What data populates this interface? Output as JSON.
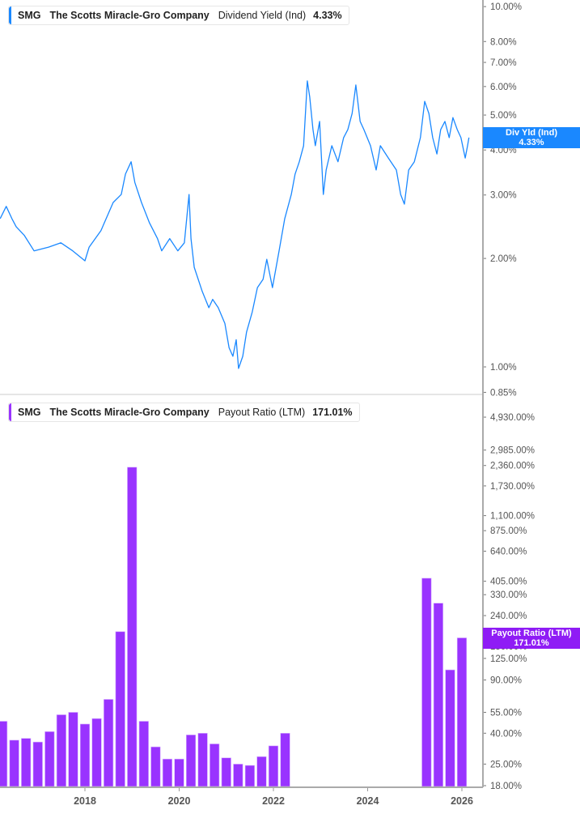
{
  "colors": {
    "line": "#1a88ff",
    "bar": "#9933ff",
    "tag_top": "#1a88ff",
    "tag_bottom": "#8f1cf5"
  },
  "top_legend": {
    "ticker": "SMG",
    "company": "The Scotts Miracle-Gro Company",
    "metric": "Dividend Yield (Ind)",
    "value": "4.33%"
  },
  "bottom_legend": {
    "ticker": "SMG",
    "company": "The Scotts Miracle-Gro Company",
    "metric": "Payout Ratio (LTM)",
    "value": "171.01%"
  },
  "top_tag": {
    "label": "Div Yld (Ind)",
    "value": "4.33%"
  },
  "bottom_tag": {
    "label": "Payout Ratio (LTM)",
    "value": "171.01%"
  },
  "chart_data": [
    {
      "type": "line",
      "scale": "log",
      "series": [
        {
          "name": "Dividend Yield (Ind)",
          "x": [
            2016.2,
            2016.33,
            2016.45,
            2016.54,
            2016.71,
            2016.92,
            2017.23,
            2017.49,
            2017.74,
            2018.0,
            2018.09,
            2018.34,
            2018.6,
            2018.77,
            2018.86,
            2018.98,
            2019.06,
            2019.2,
            2019.37,
            2019.54,
            2019.63,
            2019.8,
            2019.97,
            2020.11,
            2020.21,
            2020.25,
            2020.32,
            2020.49,
            2020.63,
            2020.71,
            2020.83,
            2020.97,
            2021.06,
            2021.14,
            2021.21,
            2021.26,
            2021.35,
            2021.43,
            2021.55,
            2021.66,
            2021.78,
            2021.86,
            2021.98,
            2022.12,
            2022.24,
            2022.38,
            2022.46,
            2022.55,
            2022.64,
            2022.72,
            2022.77,
            2022.84,
            2022.89,
            2022.98,
            2023.06,
            2023.12,
            2023.24,
            2023.37,
            2023.49,
            2023.58,
            2023.67,
            2023.75,
            2023.84,
            2023.92,
            2024.06,
            2024.18,
            2024.27,
            2024.44,
            2024.61,
            2024.7,
            2024.78,
            2024.87,
            2024.99,
            2025.12,
            2025.21,
            2025.3,
            2025.38,
            2025.47,
            2025.55,
            2025.64,
            2025.73,
            2025.81,
            2025.9,
            2025.98,
            2026.07,
            2026.12,
            2026.15
          ],
          "y": [
            2.58,
            2.79,
            2.58,
            2.45,
            2.32,
            2.1,
            2.15,
            2.21,
            2.1,
            1.97,
            2.15,
            2.39,
            2.86,
            3.01,
            3.43,
            3.71,
            3.25,
            2.86,
            2.51,
            2.27,
            2.1,
            2.27,
            2.1,
            2.21,
            3.01,
            2.27,
            1.89,
            1.62,
            1.46,
            1.54,
            1.46,
            1.32,
            1.13,
            1.07,
            1.19,
            0.99,
            1.07,
            1.25,
            1.42,
            1.66,
            1.75,
            1.99,
            1.66,
            2.1,
            2.58,
            3.01,
            3.43,
            3.71,
            4.11,
            6.22,
            5.61,
            4.56,
            4.11,
            4.8,
            3.01,
            3.52,
            4.11,
            3.71,
            4.33,
            4.56,
            5.05,
            6.06,
            4.8,
            4.56,
            4.11,
            3.52,
            4.11,
            3.8,
            3.52,
            3.01,
            2.83,
            3.52,
            3.71,
            4.33,
            5.46,
            5.05,
            4.33,
            3.9,
            4.56,
            4.8,
            4.33,
            4.92,
            4.56,
            4.33,
            3.8,
            4.11,
            4.33
          ]
        }
      ],
      "ylim": [
        0.82,
        10.3
      ],
      "yticks": [
        "10.00%",
        "8.00%",
        "7.00%",
        "6.00%",
        "5.00%",
        "4.00%",
        "3.00%",
        "2.00%",
        "1.00%",
        "0.85%"
      ],
      "ytick_values": [
        10,
        8,
        7,
        6,
        5,
        4,
        3,
        2,
        1,
        0.85
      ],
      "legend": "top-left"
    },
    {
      "type": "bar",
      "scale": "log",
      "series": [
        {
          "name": "Payout Ratio (LTM)",
          "x": [
            2016.25,
            2016.5,
            2016.75,
            2017.0,
            2017.25,
            2017.5,
            2017.75,
            2018.0,
            2018.25,
            2018.5,
            2018.75,
            2019.0,
            2019.25,
            2019.5,
            2019.75,
            2020.0,
            2020.25,
            2020.5,
            2020.75,
            2021.0,
            2021.25,
            2021.5,
            2021.75,
            2022.0,
            2022.25,
            2025.25,
            2025.5,
            2025.75,
            2026.0
          ],
          "values": [
            48,
            36,
            37,
            35,
            41,
            53,
            55,
            46,
            50,
            67,
            188,
            2300,
            48,
            32.5,
            27,
            27,
            39,
            40,
            34,
            27.5,
            25,
            24.5,
            28,
            33,
            40,
            424,
            290,
            105,
            171.01
          ]
        }
      ],
      "ylim": [
        18,
        4930
      ],
      "yticks": [
        "4,930.00%",
        "2,985.00%",
        "2,360.00%",
        "1,730.00%",
        "1,100.00%",
        "875.00%",
        "640.00%",
        "405.00%",
        "330.00%",
        "240.00%",
        "150.00%",
        "125.00%",
        "90.00%",
        "55.00%",
        "40.00%",
        "25.00%",
        "18.00%"
      ],
      "ytick_values": [
        4930,
        2985,
        2360,
        1730,
        1100,
        875,
        640,
        405,
        330,
        240,
        150,
        125,
        90,
        55,
        40,
        25,
        18
      ],
      "xticks": [
        "2018",
        "2020",
        "2022",
        "2024",
        "2026"
      ],
      "xtick_values": [
        2018,
        2020,
        2022,
        2024,
        2026
      ],
      "legend": "top-left"
    }
  ]
}
